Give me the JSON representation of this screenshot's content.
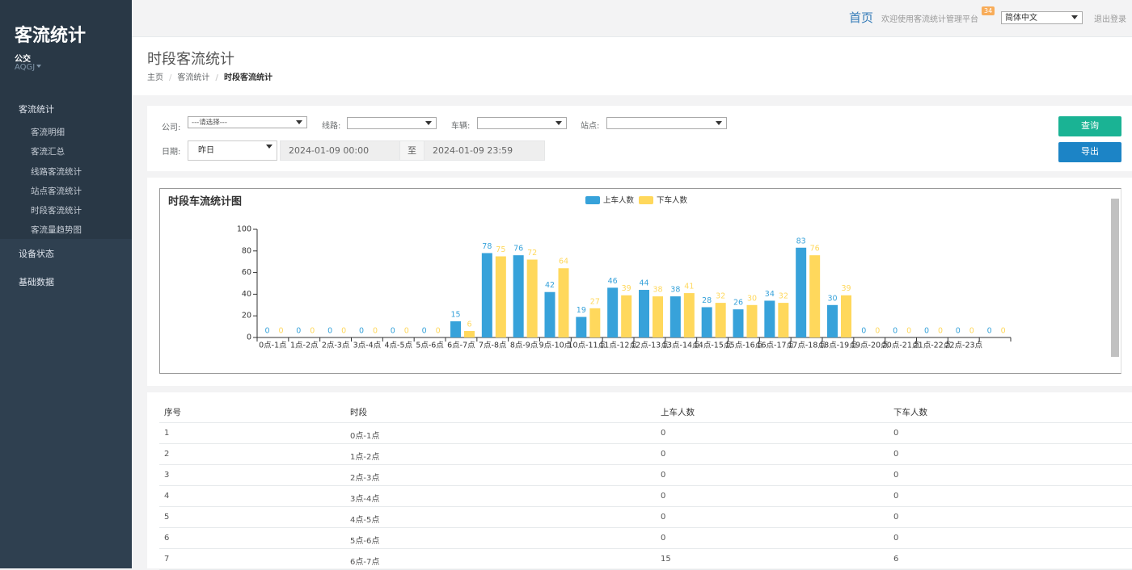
{
  "sidebar": {
    "brand": "客流统计",
    "user": "公交",
    "account": "AQGJ",
    "menu": [
      {
        "label": "客流统计",
        "items": [
          "客流明细",
          "客流汇总",
          "线路客流统计",
          "站点客流统计",
          "时段客流统计",
          "客流量趋势图"
        ]
      },
      {
        "label": "设备状态",
        "items": []
      },
      {
        "label": "基础数据",
        "items": []
      }
    ]
  },
  "topbar": {
    "home": "首页",
    "welcome": "欢迎使用客流统计管理平台",
    "badge": "34",
    "language": "简体中文",
    "logout": "退出登录"
  },
  "header": {
    "title": "时段客流统计",
    "breadcrumb": [
      "主页",
      "客流统计",
      "时段客流统计"
    ]
  },
  "filters": {
    "company_label": "公司:",
    "company_value": "---请选择---",
    "route_label": "线路:",
    "vehicle_label": "车辆:",
    "station_label": "站点:",
    "date_label": "日期:",
    "date_value": "昨日",
    "start": "2024-01-09 00:00",
    "to": "至",
    "end": "2024-01-09 23:59",
    "query": "查询",
    "export": "导出"
  },
  "chart_data": {
    "type": "bar",
    "title": "时段车流统计图",
    "categories": [
      "0点-1点",
      "1点-2点",
      "2点-3点",
      "3点-4点",
      "4点-5点",
      "5点-6点",
      "6点-7点",
      "7点-8点",
      "8点-9点",
      "9点-10点",
      "10点-11点",
      "11点-12点",
      "12点-13点",
      "13点-14点",
      "14点-15点",
      "15点-16点",
      "16点-17点",
      "17点-18点",
      "18点-19点",
      "19点-20点",
      "20点-21点",
      "21点-22点",
      "22点-23点",
      null
    ],
    "series": [
      {
        "name": "上车人数",
        "color": "#37a2da",
        "values": [
          0,
          0,
          0,
          0,
          0,
          0,
          15,
          78,
          76,
          42,
          19,
          46,
          44,
          38,
          28,
          26,
          34,
          83,
          30,
          0,
          0,
          0,
          0,
          0
        ]
      },
      {
        "name": "下车人数",
        "color": "#ffd85c",
        "values": [
          0,
          0,
          0,
          0,
          0,
          0,
          6,
          75,
          72,
          64,
          27,
          39,
          38,
          41,
          32,
          30,
          32,
          76,
          39,
          0,
          0,
          0,
          0,
          0
        ]
      }
    ],
    "ylim": [
      0,
      100
    ],
    "yticks": [
      0,
      20,
      40,
      60,
      80,
      100
    ],
    "legend": "top",
    "grid": false
  },
  "table": {
    "columns": [
      "序号",
      "时段",
      "上车人数",
      "下车人数"
    ],
    "rows": [
      [
        "1",
        "0点-1点",
        "0",
        "0"
      ],
      [
        "2",
        "1点-2点",
        "0",
        "0"
      ],
      [
        "3",
        "2点-3点",
        "0",
        "0"
      ],
      [
        "4",
        "3点-4点",
        "0",
        "0"
      ],
      [
        "5",
        "4点-5点",
        "0",
        "0"
      ],
      [
        "6",
        "5点-6点",
        "0",
        "0"
      ],
      [
        "7",
        "6点-7点",
        "15",
        "6"
      ]
    ]
  }
}
